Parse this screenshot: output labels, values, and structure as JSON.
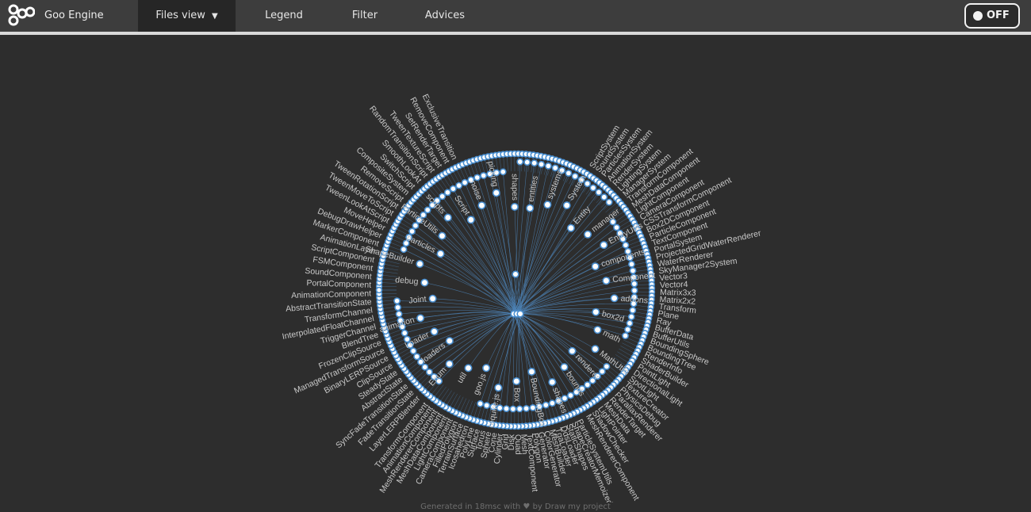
{
  "header": {
    "brand": "Goo Engine",
    "nav": [
      {
        "label": "Files view",
        "active": true,
        "caret": "▼"
      },
      {
        "label": "Legend",
        "active": false
      },
      {
        "label": "Filter",
        "active": false
      },
      {
        "label": "Advices",
        "active": false
      }
    ],
    "toggle_label": "OFF"
  },
  "footer": {
    "text_before": "Generated in 18msc with",
    "heart": "♥",
    "text_after": "by Draw my project"
  },
  "colors": {
    "background": "#2d2d2d",
    "topbar": "#3d3d3d",
    "node_stroke": "#4a8fd0",
    "node_fill": "#ffffff",
    "link": "#4d84b8",
    "label": "#c8c8c8"
  },
  "graph": {
    "inner_labels": [
      "entities",
      "systems",
      "System",
      "Entity",
      "manager",
      "EntityUtils",
      "components",
      "Component",
      "addons",
      "box2d",
      "math",
      "MathUtils",
      "renderer",
      "bounds",
      "shapes",
      "BoundingBox",
      "Box",
      "require.js",
      "goo.js",
      "util",
      "Enum",
      "loaders",
      "Loader",
      "animation",
      "Joint",
      "debug",
      "ShapeBuilder",
      "particles",
      "ParticleUtils",
      "scripts",
      "Script",
      "noise",
      "picking",
      "shapes"
    ],
    "outer_labels_left": [
      "LayerLERPBlender",
      "FadeTransitionState",
      "SyncFadeTransitionState",
      "AbstractState",
      "SteadyState",
      "ClipSource",
      "BinaryLERPSource",
      "ManagedTransformSource",
      "FrozenClipSource",
      "BlendTree",
      "TriggerChannel",
      "InterpolatedFloatChannel",
      "TransformChannel",
      "AbstractTransitionState",
      "AnimationComponent",
      "PortalComponent",
      "SoundComponent",
      "FSMComponent",
      "ScriptComponent",
      "AnimationLayer",
      "MarkerComponent",
      "DebugDrawHelper",
      "MoveHelper",
      "TweenLookAtScript",
      "TweenMoveToScript",
      "TweenRotationScript",
      "RemoveScript",
      "CompositeSystem",
      "SwitchScript",
      "SmoothLookAt",
      "RandomTransitionScript",
      "TweenTextureScript",
      "SetRenderTarget",
      "RemoveComponent",
      "ExclusiveTransition"
    ],
    "outer_labels_right": [
      "ScriptSystem",
      "SoundSystem",
      "ParticlesSystem",
      "AnimationSystem",
      "RenderSystem",
      "LightingSystem",
      "ManagerSystem",
      "TransformComponent",
      "MeshDataComponent",
      "LightComponent",
      "CameraComponent",
      "CSSTransformComponent",
      "Box2DComponent",
      "ParticleComponent",
      "TextComponent",
      "PortalSystem",
      "ProjectedGridWaterRenderer",
      "WaterRenderer",
      "SkyManager2System",
      "Vector3",
      "Vector4",
      "Matrix3x3",
      "Matrix2x2",
      "Transform",
      "Plane",
      "Ray",
      "BufferData",
      "BufferUtils",
      "BoundingSphere",
      "BoundingTree",
      "RenderInfo",
      "ShaderBuilder",
      "PointLight",
      "DirectionalLight",
      "SpotLight",
      "TextureCreator",
      "PhysicsDebug",
      "ParallaxRenderer",
      "RenderTarget",
      "MeshData",
      "LightPointer",
      "ShadowChecker",
      "MeshRendererComponent"
    ],
    "outer_labels_bottom": [
      "ParticleSystemUtils",
      "ShapeCreatorMemoized",
      "StaticShapes",
      "DdsLoader",
      "TgaLoader",
      "MeshBuilder",
      "ColorGenerator",
      "Generator",
      "Polygon",
      "TextComponent",
      "Mesh",
      "Quad",
      "Disk",
      "Grid",
      "Cylinder",
      "Cone",
      "Sphere",
      "Torus",
      "Surface",
      "PolyLine",
      "Icosahedron",
      "TerrainSurface",
      "FilledPolygon",
      "CameraComponent",
      "LightComponent",
      "MeshDataComponent",
      "MeshRendererComponent",
      "AnimationComponent",
      "TransformComponent"
    ]
  }
}
